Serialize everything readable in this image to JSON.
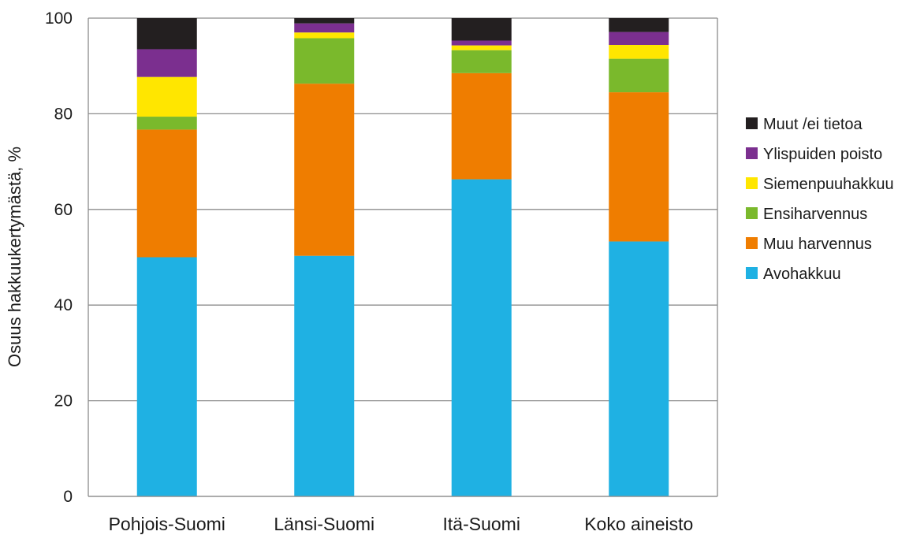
{
  "chart_data": {
    "type": "bar",
    "stacked": true,
    "categories": [
      "Pohjois-Suomi",
      "Länsi-Suomi",
      "Itä-Suomi",
      "Koko aineisto"
    ],
    "series": [
      {
        "name": "Avohakkuu",
        "color": "#1fb1e3",
        "values": [
          50,
          50.3,
          66.3,
          53.3
        ]
      },
      {
        "name": "Muu harvennus",
        "color": "#ef7d00",
        "values": [
          26.7,
          36.0,
          22.2,
          31.2
        ]
      },
      {
        "name": "Ensiharvennus",
        "color": "#7ab92c",
        "values": [
          2.7,
          9.5,
          4.8,
          7.0
        ]
      },
      {
        "name": "Siemenpuuhakkuu",
        "color": "#ffe600",
        "values": [
          8.3,
          1.2,
          1.0,
          2.9
        ]
      },
      {
        "name": "Ylispuiden poisto",
        "color": "#7b2f8f",
        "values": [
          5.8,
          1.9,
          1.0,
          2.7
        ]
      },
      {
        "name": "Muut /ei tietoa",
        "color": "#231f20",
        "values": [
          6.5,
          1.1,
          4.7,
          2.9
        ]
      }
    ],
    "xlabel": "",
    "ylabel": "Osuus hakkuukertymästä, %",
    "ylim": [
      0,
      100
    ],
    "yticks": [
      0,
      20,
      40,
      60,
      80,
      100
    ],
    "grid": true,
    "legend_position": "right",
    "legend_order": [
      "Muut /ei tietoa",
      "Ylispuiden poisto",
      "Siemenpuuhakkuu",
      "Ensiharvennus",
      "Muu harvennus",
      "Avohakkuu"
    ]
  }
}
